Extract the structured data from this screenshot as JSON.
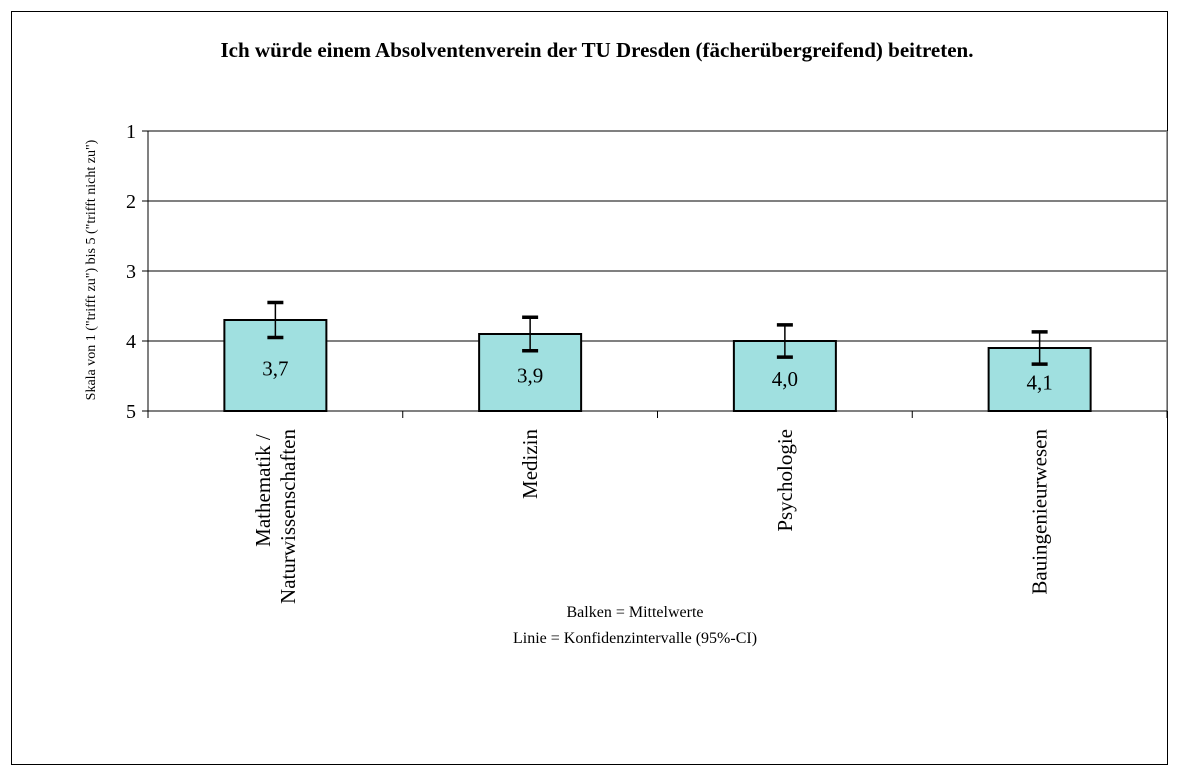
{
  "chart_data": {
    "type": "bar",
    "title": "Ich würde einem Absolventenverein der TU Dresden (fächerübergreifend) beitreten.",
    "y_label": "Skala von 1 (\"trifft zu\") bis 5 (\"trifft nicht zu\")",
    "categories": [
      "Mathematik / Naturwissenschaften",
      "Medizin",
      "Psychologie",
      "Bauingenieurwesen"
    ],
    "values": [
      3.7,
      3.9,
      4.0,
      4.1
    ],
    "value_labels": [
      "3,7",
      "3,9",
      "4,0",
      "4,1"
    ],
    "errors": [
      0.25,
      0.24,
      0.23,
      0.23
    ],
    "color": "#a0e0e0",
    "ylim": [
      5,
      1
    ],
    "yticks": [
      1,
      2,
      3,
      4,
      5
    ],
    "grid": true,
    "annotations": [
      "Balken = Mittelwerte",
      "Linie = Konfidenzintervalle (95%-CI)"
    ]
  }
}
